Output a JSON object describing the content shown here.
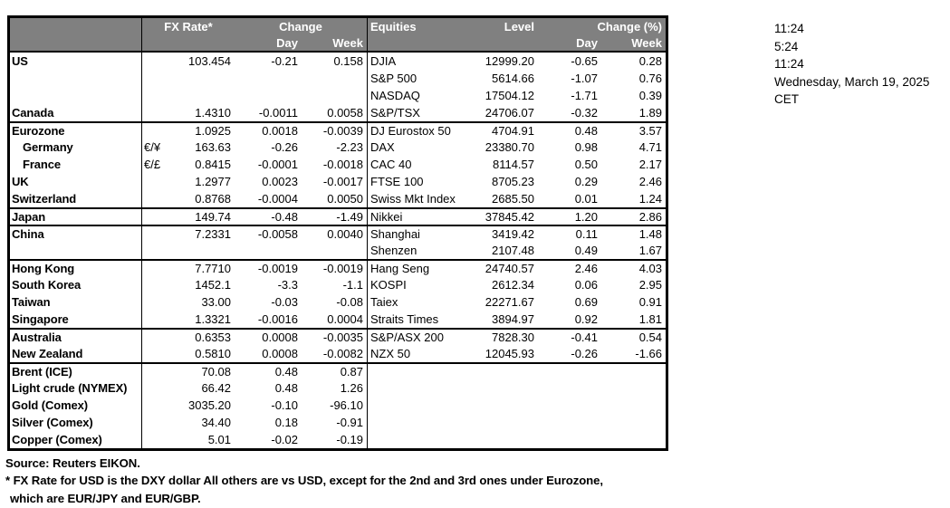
{
  "colors": {
    "header_bg": "#808080",
    "header_text": "#ffffff",
    "border": "#000000",
    "body_text": "#000000"
  },
  "clock": {
    "lines": [
      "11:24",
      "5:24",
      "11:24",
      "Wednesday, March 19, 2025",
      "CET"
    ]
  },
  "table": {
    "header": {
      "fx_rate": "FX Rate*",
      "change": "Change",
      "day": "Day",
      "week": "Week",
      "equities": "Equities",
      "level": "Level",
      "change_pct": "Change (%)"
    },
    "rows": [
      {
        "label": "US",
        "pair": "",
        "rate": "103.454",
        "day": "-0.21",
        "week": "0.158",
        "eq": "DJIA",
        "level": "12999.20",
        "eday": "-0.65",
        "eweek": "0.28",
        "sep": false,
        "indent": false
      },
      {
        "label": "",
        "pair": "",
        "rate": "",
        "day": "",
        "week": "",
        "eq": "S&P 500",
        "level": "5614.66",
        "eday": "-1.07",
        "eweek": "0.76",
        "sep": false,
        "indent": false
      },
      {
        "label": "",
        "pair": "",
        "rate": "",
        "day": "",
        "week": "",
        "eq": "NASDAQ",
        "level": "17504.12",
        "eday": "-1.71",
        "eweek": "0.39",
        "sep": false,
        "indent": false
      },
      {
        "label": "Canada",
        "pair": "",
        "rate": "1.4310",
        "day": "-0.0011",
        "week": "0.0058",
        "eq": "S&P/TSX",
        "level": "24706.07",
        "eday": "-0.32",
        "eweek": "1.89",
        "sep": false,
        "indent": false
      },
      {
        "label": "Eurozone",
        "pair": "",
        "rate": "1.0925",
        "day": "0.0018",
        "week": "-0.0039",
        "eq": "DJ Eurostox 50",
        "level": "4704.91",
        "eday": "0.48",
        "eweek": "3.57",
        "sep": true,
        "indent": false
      },
      {
        "label": "Germany",
        "pair": "€/¥",
        "rate": "163.63",
        "day": "-0.26",
        "week": "-2.23",
        "eq": "DAX",
        "level": "23380.70",
        "eday": "0.98",
        "eweek": "4.71",
        "sep": false,
        "indent": true
      },
      {
        "label": "France",
        "pair": "€/£",
        "rate": "0.8415",
        "day": "-0.0001",
        "week": "-0.0018",
        "eq": "CAC 40",
        "level": "8114.57",
        "eday": "0.50",
        "eweek": "2.17",
        "sep": false,
        "indent": true
      },
      {
        "label": "UK",
        "pair": "",
        "rate": "1.2977",
        "day": "0.0023",
        "week": "-0.0017",
        "eq": "FTSE 100",
        "level": "8705.23",
        "eday": "0.29",
        "eweek": "2.46",
        "sep": false,
        "indent": false
      },
      {
        "label": "Switzerland",
        "pair": "",
        "rate": "0.8768",
        "day": "-0.0004",
        "week": "0.0050",
        "eq": "Swiss Mkt Index",
        "level": "2685.50",
        "eday": "0.01",
        "eweek": "1.24",
        "sep": false,
        "indent": false
      },
      {
        "label": "Japan",
        "pair": "",
        "rate": "149.74",
        "day": "-0.48",
        "week": "-1.49",
        "eq": "Nikkei",
        "level": "37845.42",
        "eday": "1.20",
        "eweek": "2.86",
        "sep": true,
        "indent": false
      },
      {
        "label": "China",
        "pair": "",
        "rate": "7.2331",
        "day": "-0.0058",
        "week": "0.0040",
        "eq": "Shanghai",
        "level": "3419.42",
        "eday": "0.11",
        "eweek": "1.48",
        "sep": true,
        "indent": false
      },
      {
        "label": "",
        "pair": "",
        "rate": "",
        "day": "",
        "week": "",
        "eq": "Shenzen",
        "level": "2107.48",
        "eday": "0.49",
        "eweek": "1.67",
        "sep": false,
        "indent": false
      },
      {
        "label": "Hong Kong",
        "pair": "",
        "rate": "7.7710",
        "day": "-0.0019",
        "week": "-0.0019",
        "eq": "Hang Seng",
        "level": "24740.57",
        "eday": "2.46",
        "eweek": "4.03",
        "sep": true,
        "indent": false
      },
      {
        "label": "South Korea",
        "pair": "",
        "rate": "1452.1",
        "day": "-3.3",
        "week": "-1.1",
        "eq": "KOSPI",
        "level": "2612.34",
        "eday": "0.06",
        "eweek": "2.95",
        "sep": false,
        "indent": false
      },
      {
        "label": "Taiwan",
        "pair": "",
        "rate": "33.00",
        "day": "-0.03",
        "week": "-0.08",
        "eq": "Taiex",
        "level": "22271.67",
        "eday": "0.69",
        "eweek": "0.91",
        "sep": false,
        "indent": false
      },
      {
        "label": "Singapore",
        "pair": "",
        "rate": "1.3321",
        "day": "-0.0016",
        "week": "0.0004",
        "eq": "Straits Times",
        "level": "3894.97",
        "eday": "0.92",
        "eweek": "1.81",
        "sep": false,
        "indent": false
      },
      {
        "label": "Australia",
        "pair": "",
        "rate": "0.6353",
        "day": "0.0008",
        "week": "-0.0035",
        "eq": "S&P/ASX  200",
        "level": "7828.30",
        "eday": "-0.41",
        "eweek": "0.54",
        "sep": true,
        "indent": false
      },
      {
        "label": "New Zealand",
        "pair": "",
        "rate": "0.5810",
        "day": "0.0008",
        "week": "-0.0082",
        "eq": "NZX 50",
        "level": "12045.93",
        "eday": "-0.26",
        "eweek": "-1.66",
        "sep": false,
        "indent": false
      },
      {
        "label": "Brent (ICE)",
        "pair": "",
        "rate": "70.08",
        "day": "0.48",
        "week": "0.87",
        "eq": "",
        "level": "",
        "eday": "",
        "eweek": "",
        "sep": true,
        "indent": false
      },
      {
        "label": "Light crude (NYMEX)",
        "pair": "",
        "rate": "66.42",
        "day": "0.48",
        "week": "1.26",
        "eq": "",
        "level": "",
        "eday": "",
        "eweek": "",
        "sep": false,
        "indent": false
      },
      {
        "label": "Gold (Comex)",
        "pair": "",
        "rate": "3035.20",
        "day": "-0.10",
        "week": "-96.10",
        "eq": "",
        "level": "",
        "eday": "",
        "eweek": "",
        "sep": false,
        "indent": false
      },
      {
        "label": "Silver (Comex)",
        "pair": "",
        "rate": "34.40",
        "day": "0.18",
        "week": "-0.91",
        "eq": "",
        "level": "",
        "eday": "",
        "eweek": "",
        "sep": false,
        "indent": false
      },
      {
        "label": "Copper (Comex)",
        "pair": "",
        "rate": "5.01",
        "day": "-0.02",
        "week": "-0.19",
        "eq": "",
        "level": "",
        "eday": "",
        "eweek": "",
        "sep": false,
        "indent": false
      }
    ]
  },
  "footer": {
    "source": "Source:  Reuters EIKON.",
    "note1": "* FX Rate for USD is the DXY dollar  All others are vs USD, except for the 2nd and 3rd ones under Eurozone,",
    "note2": "which are EUR/JPY and EUR/GBP."
  }
}
